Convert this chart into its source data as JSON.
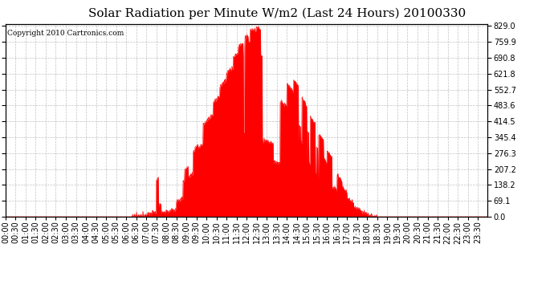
{
  "title": "Solar Radiation per Minute W/m2 (Last 24 Hours) 20100330",
  "copyright": "Copyright 2010 Cartronics.com",
  "yticks": [
    0.0,
    69.1,
    138.2,
    207.2,
    276.3,
    345.4,
    414.5,
    483.6,
    552.7,
    621.8,
    690.8,
    759.9,
    829.0
  ],
  "ymax": 829.0,
  "ymin": 0.0,
  "fill_color": "#FF0000",
  "line_color": "#FF0000",
  "bg_color": "#FFFFFF",
  "grid_color": "#BBBBBB",
  "dashed_line_color": "#FF0000",
  "title_fontsize": 11,
  "copyright_fontsize": 6.5,
  "tick_fontsize": 7,
  "n_minutes": 1440,
  "xtick_interval": 30
}
